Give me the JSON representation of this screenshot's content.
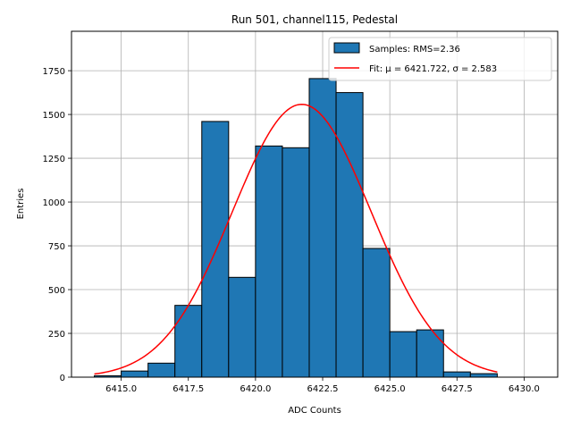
{
  "chart_data": {
    "type": "bar",
    "title": "Run 501, channel115, Pedestal",
    "xlabel": "ADC Counts",
    "ylabel": "Entries",
    "xlim": [
      6413.15,
      6431.25
    ],
    "ylim": [
      0,
      1975
    ],
    "grid": true,
    "legend_position": "top-right",
    "xticks": [
      6415.0,
      6417.5,
      6420.0,
      6422.5,
      6425.0,
      6427.5,
      6430.0
    ],
    "xtick_labels": [
      "6415.0",
      "6417.5",
      "6420.0",
      "6422.5",
      "6425.0",
      "6427.5",
      "6430.0"
    ],
    "yticks": [
      0,
      250,
      500,
      750,
      1000,
      1250,
      1500,
      1750
    ],
    "ytick_labels": [
      "0",
      "250",
      "500",
      "750",
      "1000",
      "1250",
      "1500",
      "1750"
    ],
    "bin_edges": [
      6414,
      6415,
      6416,
      6417,
      6418,
      6419,
      6420,
      6421,
      6422,
      6423,
      6424,
      6425,
      6426,
      6427,
      6428,
      6429
    ],
    "series": [
      {
        "name": "Samples: RMS=2.36",
        "kind": "histogram",
        "color": "#1f77b4",
        "values": [
          8,
          35,
          80,
          410,
          1460,
          570,
          1320,
          1310,
          1705,
          1625,
          735,
          260,
          270,
          30,
          20
        ]
      },
      {
        "name": "Fit: μ = 6421.722, σ = 2.583",
        "kind": "gaussian",
        "color": "#ff0000",
        "mu": 6421.722,
        "sigma": 2.583,
        "amplitude": 1558,
        "x_range": [
          6414,
          6429
        ]
      }
    ]
  }
}
